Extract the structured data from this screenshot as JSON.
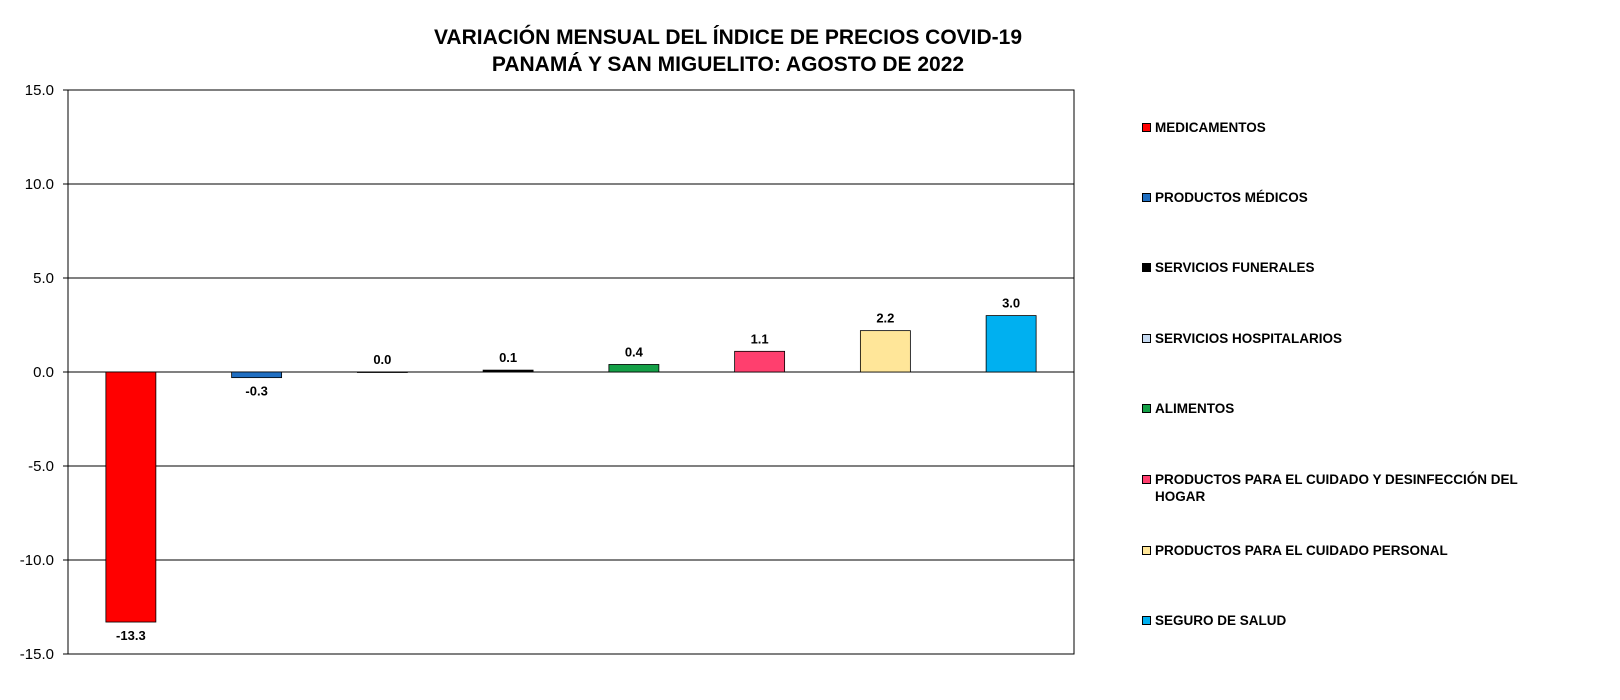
{
  "chart_data": {
    "type": "bar",
    "title": [
      "VARIACIÓN MENSUAL DEL ÍNDICE DE PRECIOS COVID-19",
      "PANAMÁ Y SAN MIGUELITO: AGOSTO DE 2022"
    ],
    "xlabel": "",
    "ylabel": "",
    "ylim": [
      -15,
      15
    ],
    "yticks": [
      "15.0",
      "10.0",
      "5.0",
      "0.0",
      "-5.0",
      "-10.0",
      "-15.0"
    ],
    "ytick_values": [
      15,
      10,
      5,
      0,
      -5,
      -10,
      -15
    ],
    "grid": true,
    "bars": [
      {
        "name": "MEDICAMENTOS",
        "value": -13.3,
        "label": "-13.3",
        "color": "#FF0000"
      },
      {
        "name": "PRODUCTOS MÉDICOS",
        "value": -0.3,
        "label": "-0.3",
        "color": "#1F6EC1"
      },
      {
        "name": "SERVICIOS HOSPITALARIOS",
        "value": 0.0,
        "label": "0.0",
        "color": "#C6D9F0"
      },
      {
        "name": "SERVICIOS FUNERALES",
        "value": 0.1,
        "label": "0.1",
        "color": "#000000"
      },
      {
        "name": "ALIMENTOS",
        "value": 0.4,
        "label": "0.4",
        "color": "#14A047"
      },
      {
        "name": "PRODUCTOS PARA EL CUIDADO Y DESINFECCIÓN DEL HOGAR",
        "value": 1.1,
        "label": "1.1",
        "color": "#FF3F6E"
      },
      {
        "name": "PRODUCTOS PARA EL CUIDADO PERSONAL",
        "value": 2.2,
        "label": "2.2",
        "color": "#FFE699"
      },
      {
        "name": "SEGURO DE SALUD",
        "value": 3.0,
        "label": "3.0",
        "color": "#00B0F0"
      }
    ],
    "legend": {
      "placement": "right",
      "entries": [
        {
          "label": "MEDICAMENTOS",
          "color": "#FF0000"
        },
        {
          "label": "PRODUCTOS MÉDICOS",
          "color": "#1F6EC1"
        },
        {
          "label": "SERVICIOS FUNERALES",
          "color": "#000000"
        },
        {
          "label": "SERVICIOS HOSPITALARIOS",
          "color": "#C6D9F0"
        },
        {
          "label": "ALIMENTOS",
          "color": "#14A047"
        },
        {
          "label": "PRODUCTOS PARA EL CUIDADO Y DESINFECCIÓN DEL HOGAR",
          "color": "#FF3F6E"
        },
        {
          "label": "PRODUCTOS PARA EL CUIDADO PERSONAL",
          "color": "#FFE699"
        },
        {
          "label": "SEGURO DE SALUD",
          "color": "#00B0F0"
        }
      ]
    }
  }
}
